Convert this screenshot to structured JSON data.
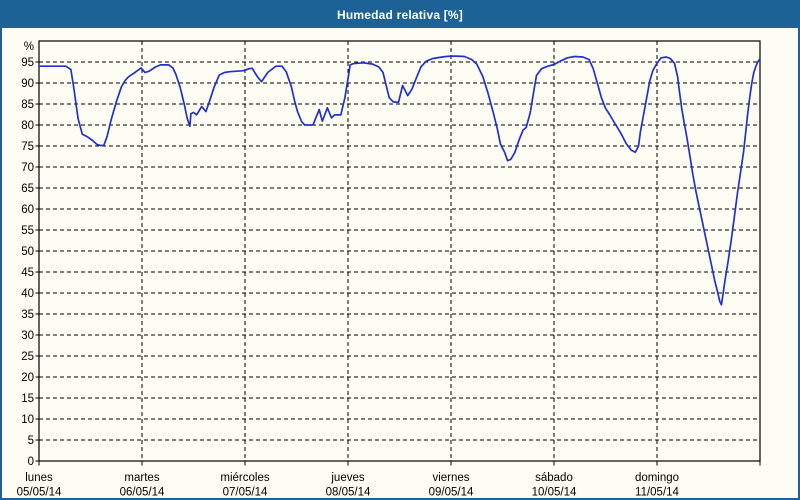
{
  "window": {
    "title": "Humedad relativa [%]"
  },
  "colors": {
    "frame": "#1d6296",
    "titlebar_bg": "#1d6296",
    "titlebar_text": "#ffffff",
    "background": "#fdfdf4",
    "grid": "#000000",
    "axis": "#000000",
    "text": "#000000",
    "line": "#2431c8"
  },
  "chart_data": {
    "type": "line",
    "title": "Humedad relativa [%]",
    "ylabel": "%",
    "ylim": [
      0,
      100
    ],
    "y_ticks": [
      0,
      5,
      10,
      15,
      20,
      25,
      30,
      35,
      40,
      45,
      50,
      55,
      60,
      65,
      70,
      75,
      80,
      85,
      90,
      95
    ],
    "grid": "dashed",
    "legend": "none",
    "x_axis": {
      "unit": "days",
      "range_days": [
        0,
        7
      ],
      "day_ticks": [
        {
          "day": 0,
          "name": "lunes",
          "date": "05/05/14"
        },
        {
          "day": 1,
          "name": "martes",
          "date": "06/05/14"
        },
        {
          "day": 2,
          "name": "miércoles",
          "date": "07/05/14"
        },
        {
          "day": 3,
          "name": "jueves",
          "date": "08/05/14"
        },
        {
          "day": 4,
          "name": "viernes",
          "date": "09/05/14"
        },
        {
          "day": 5,
          "name": "sábado",
          "date": "10/05/14"
        },
        {
          "day": 6,
          "name": "domingo",
          "date": "11/05/14"
        }
      ]
    },
    "series": [
      {
        "name": "Humedad relativa",
        "color": "#2431c8",
        "points_day_value": [
          [
            0.0,
            94.0
          ],
          [
            0.26,
            94.0
          ],
          [
            0.31,
            93.2
          ],
          [
            0.34,
            88.5
          ],
          [
            0.38,
            81.5
          ],
          [
            0.42,
            77.8
          ],
          [
            0.47,
            77.2
          ],
          [
            0.52,
            76.3
          ],
          [
            0.56,
            75.4
          ],
          [
            0.6,
            75.1
          ],
          [
            0.63,
            75.2
          ],
          [
            0.66,
            77.2
          ],
          [
            0.7,
            81.2
          ],
          [
            0.75,
            85.5
          ],
          [
            0.8,
            89.1
          ],
          [
            0.84,
            90.7
          ],
          [
            0.87,
            91.5
          ],
          [
            0.92,
            92.3
          ],
          [
            0.97,
            93.2
          ],
          [
            0.99,
            93.6
          ],
          [
            1.03,
            92.5
          ],
          [
            1.07,
            92.8
          ],
          [
            1.13,
            93.8
          ],
          [
            1.18,
            94.3
          ],
          [
            1.26,
            94.3
          ],
          [
            1.3,
            93.6
          ],
          [
            1.33,
            92.0
          ],
          [
            1.37,
            89.0
          ],
          [
            1.41,
            85.0
          ],
          [
            1.44,
            81.5
          ],
          [
            1.465,
            79.7
          ],
          [
            1.475,
            82.7
          ],
          [
            1.5,
            83.0
          ],
          [
            1.53,
            82.4
          ],
          [
            1.58,
            84.4
          ],
          [
            1.62,
            83.2
          ],
          [
            1.66,
            86.0
          ],
          [
            1.7,
            89.0
          ],
          [
            1.75,
            91.9
          ],
          [
            1.8,
            92.5
          ],
          [
            1.85,
            92.7
          ],
          [
            1.92,
            92.8
          ],
          [
            1.97,
            92.9
          ],
          [
            2.0,
            93.0
          ],
          [
            2.04,
            93.4
          ],
          [
            2.07,
            93.5
          ],
          [
            2.12,
            91.5
          ],
          [
            2.16,
            90.3
          ],
          [
            2.22,
            92.5
          ],
          [
            2.3,
            94.0
          ],
          [
            2.36,
            94.0
          ],
          [
            2.4,
            92.7
          ],
          [
            2.45,
            89.1
          ],
          [
            2.48,
            85.9
          ],
          [
            2.51,
            83.2
          ],
          [
            2.55,
            80.8
          ],
          [
            2.58,
            80.0
          ],
          [
            2.66,
            80.0
          ],
          [
            2.72,
            83.7
          ],
          [
            2.75,
            80.9
          ],
          [
            2.8,
            84.1
          ],
          [
            2.84,
            81.7
          ],
          [
            2.87,
            82.4
          ],
          [
            2.93,
            82.4
          ],
          [
            2.97,
            86.5
          ],
          [
            3.0,
            91.0
          ],
          [
            3.02,
            94.3
          ],
          [
            3.05,
            94.6
          ],
          [
            3.15,
            94.8
          ],
          [
            3.24,
            94.5
          ],
          [
            3.3,
            93.8
          ],
          [
            3.34,
            92.5
          ],
          [
            3.37,
            89.5
          ],
          [
            3.4,
            86.5
          ],
          [
            3.44,
            85.5
          ],
          [
            3.49,
            85.4
          ],
          [
            3.53,
            89.4
          ],
          [
            3.58,
            87.0
          ],
          [
            3.62,
            88.5
          ],
          [
            3.66,
            91.0
          ],
          [
            3.71,
            93.9
          ],
          [
            3.76,
            95.2
          ],
          [
            3.82,
            95.8
          ],
          [
            3.89,
            96.1
          ],
          [
            3.95,
            96.3
          ],
          [
            4.0,
            96.4
          ],
          [
            4.05,
            96.4
          ],
          [
            4.13,
            96.3
          ],
          [
            4.2,
            95.6
          ],
          [
            4.25,
            94.5
          ],
          [
            4.31,
            91.5
          ],
          [
            4.36,
            87.5
          ],
          [
            4.41,
            83.0
          ],
          [
            4.45,
            79.0
          ],
          [
            4.48,
            75.5
          ],
          [
            4.52,
            73.5
          ],
          [
            4.55,
            71.5
          ],
          [
            4.58,
            71.8
          ],
          [
            4.62,
            73.5
          ],
          [
            4.66,
            76.4
          ],
          [
            4.7,
            78.8
          ],
          [
            4.73,
            79.4
          ],
          [
            4.77,
            83.0
          ],
          [
            4.8,
            87.5
          ],
          [
            4.83,
            91.8
          ],
          [
            4.88,
            93.4
          ],
          [
            4.94,
            94.0
          ],
          [
            5.0,
            94.4
          ],
          [
            5.06,
            95.2
          ],
          [
            5.13,
            96.0
          ],
          [
            5.2,
            96.3
          ],
          [
            5.28,
            96.2
          ],
          [
            5.34,
            95.6
          ],
          [
            5.38,
            93.5
          ],
          [
            5.42,
            90.0
          ],
          [
            5.46,
            86.5
          ],
          [
            5.5,
            84.0
          ],
          [
            5.54,
            82.5
          ],
          [
            5.6,
            80.0
          ],
          [
            5.65,
            78.0
          ],
          [
            5.7,
            75.6
          ],
          [
            5.75,
            74.0
          ],
          [
            5.79,
            73.5
          ],
          [
            5.82,
            75.0
          ],
          [
            5.84,
            78.5
          ],
          [
            5.87,
            82.5
          ],
          [
            5.9,
            86.5
          ],
          [
            5.93,
            90.5
          ],
          [
            5.96,
            93.0
          ],
          [
            6.0,
            94.7
          ],
          [
            6.04,
            96.0
          ],
          [
            6.09,
            96.2
          ],
          [
            6.13,
            95.8
          ],
          [
            6.17,
            94.7
          ],
          [
            6.2,
            91.5
          ],
          [
            6.22,
            87.5
          ],
          [
            6.24,
            84.0
          ],
          [
            6.26,
            81.0
          ],
          [
            6.29,
            77.0
          ],
          [
            6.32,
            72.5
          ],
          [
            6.35,
            68.0
          ],
          [
            6.38,
            64.0
          ],
          [
            6.41,
            60.5
          ],
          [
            6.44,
            57.0
          ],
          [
            6.47,
            53.5
          ],
          [
            6.5,
            50.0
          ],
          [
            6.53,
            46.5
          ],
          [
            6.56,
            43.0
          ],
          [
            6.59,
            40.0
          ],
          [
            6.61,
            38.0
          ],
          [
            6.625,
            37.2
          ],
          [
            6.64,
            39.5
          ],
          [
            6.66,
            43.0
          ],
          [
            6.69,
            47.5
          ],
          [
            6.72,
            52.5
          ],
          [
            6.75,
            58.0
          ],
          [
            6.78,
            63.5
          ],
          [
            6.81,
            68.5
          ],
          [
            6.84,
            73.5
          ],
          [
            6.86,
            78.0
          ],
          [
            6.88,
            82.5
          ],
          [
            6.9,
            86.5
          ],
          [
            6.92,
            90.0
          ],
          [
            6.94,
            92.5
          ],
          [
            6.96,
            94.0
          ],
          [
            6.98,
            95.1
          ],
          [
            7.0,
            95.7
          ]
        ]
      }
    ]
  }
}
